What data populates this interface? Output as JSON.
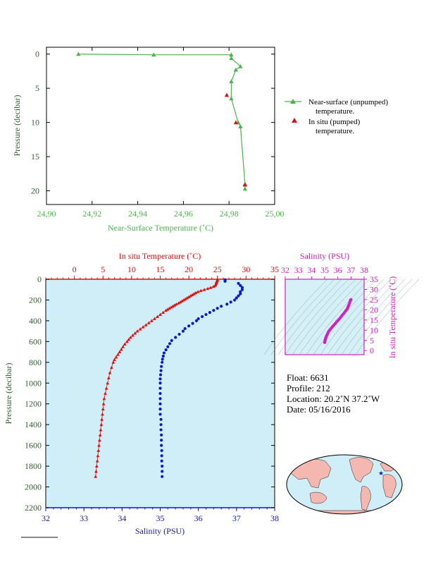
{
  "colors": {
    "green": "#4db34d",
    "red": "#e01010",
    "blue": "#0a1ad0",
    "magenta": "#d020c0",
    "panel_bg": "#cfeef8",
    "dark_axis": "#2f5f2f",
    "navy": "#1a1aa0"
  },
  "chart_data": [
    {
      "type": "line",
      "xlabel": "Near-Surface Temperature (˚C)",
      "ylabel": "Pressure (decibar)",
      "xlim": [
        24.9,
        25.0
      ],
      "ylim": [
        22,
        -1
      ],
      "x_ticks": [
        "24,90",
        "24,92",
        "24,94",
        "24,96",
        "24,98",
        "25,00"
      ],
      "y_ticks": [
        "0",
        "5",
        "10",
        "15",
        "20"
      ],
      "series": [
        {
          "name": "Near-surface (unpumped) temperature.",
          "x": [
            24.914,
            24.947,
            24.981,
            24.981,
            24.985,
            24.983,
            24.981,
            24.981,
            24.984,
            24.985,
            24.987,
            24.987
          ],
          "y": [
            0.0,
            0.1,
            0.1,
            0.6,
            1.8,
            2.3,
            4.0,
            6.5,
            10.0,
            10.6,
            19.0,
            19.7
          ]
        },
        {
          "name": "In situ (pumped) temperature.",
          "x": [
            24.979,
            24.983,
            24.987
          ],
          "y": [
            6.0,
            10.0,
            19.1
          ]
        }
      ],
      "legend": [
        {
          "line1": "Near-surface (unpumped)",
          "line2": "temperature."
        },
        {
          "line1": "In situ (pumped)",
          "line2": "temperature."
        }
      ]
    },
    {
      "type": "scatter",
      "top_xlabel": "In situ Temperature (˚C)",
      "bottom_xlabel": "Salinity (PSU)",
      "ylabel": "Pressure (decibar)",
      "temp_lim": [
        -5,
        35
      ],
      "sal_lim": [
        32,
        38
      ],
      "ylim": [
        2200,
        0
      ],
      "temp_ticks": [
        "0",
        "5",
        "10",
        "15",
        "20",
        "25",
        "30",
        "35"
      ],
      "sal_ticks": [
        "32",
        "33",
        "34",
        "35",
        "36",
        "37",
        "38"
      ],
      "y_ticks": [
        "0",
        "200",
        "400",
        "600",
        "800",
        "1000",
        "1200",
        "1400",
        "1600",
        "1800",
        "2000",
        "2200"
      ],
      "temperature": {
        "p": [
          5,
          10,
          20,
          30,
          40,
          50,
          60,
          70,
          80,
          90,
          100,
          110,
          120,
          130,
          140,
          150,
          160,
          170,
          180,
          190,
          200,
          210,
          220,
          230,
          240,
          250,
          260,
          270,
          280,
          290,
          300,
          320,
          340,
          360,
          380,
          400,
          420,
          440,
          460,
          480,
          500,
          520,
          540,
          560,
          580,
          600,
          625,
          650,
          675,
          700,
          725,
          750,
          775,
          800,
          850,
          900,
          950,
          1000,
          1050,
          1100,
          1150,
          1200,
          1250,
          1300,
          1350,
          1400,
          1450,
          1500,
          1550,
          1600,
          1650,
          1700,
          1750,
          1800,
          1850,
          1900
        ],
        "t": [
          25.0,
          25.0,
          24.9,
          24.8,
          24.8,
          24.7,
          24.6,
          24.3,
          23.8,
          23.3,
          22.7,
          22.1,
          21.6,
          21.2,
          20.9,
          20.6,
          20.3,
          20.0,
          19.7,
          19.4,
          19.1,
          18.8,
          18.5,
          18.2,
          17.8,
          17.5,
          17.2,
          16.9,
          16.6,
          16.3,
          16.0,
          15.5,
          15.0,
          14.5,
          14.0,
          13.5,
          13.0,
          12.5,
          12.0,
          11.5,
          11.0,
          10.6,
          10.2,
          9.8,
          9.5,
          9.2,
          8.8,
          8.5,
          8.2,
          7.9,
          7.6,
          7.3,
          7.0,
          6.8,
          6.5,
          6.2,
          6.0,
          5.8,
          5.6,
          5.4,
          5.2,
          5.1,
          5.0,
          4.9,
          4.8,
          4.7,
          4.6,
          4.5,
          4.4,
          4.3,
          4.2,
          4.1,
          4.0,
          3.9,
          3.8,
          3.7
        ]
      },
      "salinity": {
        "p": [
          5,
          10,
          20,
          40,
          60,
          80,
          100,
          120,
          140,
          160,
          180,
          200,
          220,
          240,
          260,
          280,
          300,
          320,
          340,
          360,
          380,
          400,
          425,
          450,
          475,
          500,
          530,
          560,
          590,
          620,
          650,
          680,
          710,
          740,
          770,
          800,
          840,
          880,
          920,
          960,
          1000,
          1050,
          1100,
          1150,
          1200,
          1250,
          1300,
          1350,
          1400,
          1450,
          1500,
          1550,
          1600,
          1650,
          1700,
          1750,
          1800,
          1850,
          1900
        ],
        "s": [
          36.7,
          36.7,
          36.7,
          37.05,
          37.1,
          37.15,
          37.15,
          37.1,
          37.1,
          37.05,
          37.0,
          36.95,
          36.85,
          36.75,
          36.6,
          36.5,
          36.4,
          36.3,
          36.2,
          36.1,
          36.0,
          35.95,
          35.85,
          35.75,
          35.65,
          35.6,
          35.5,
          35.4,
          35.3,
          35.25,
          35.2,
          35.15,
          35.1,
          35.08,
          35.06,
          35.05,
          35.03,
          35.02,
          35.01,
          35.0,
          35.0,
          35.0,
          35.0,
          35.0,
          35.0,
          35.0,
          35.0,
          35.02,
          35.02,
          35.02,
          35.03,
          35.03,
          35.03,
          35.04,
          35.04,
          35.04,
          35.05,
          35.05,
          35.05
        ]
      }
    },
    {
      "type": "scatter",
      "top_xlabel": "Salinity (PSU)",
      "ylabel": "In situ Temperature (˚C)",
      "sal_lim": [
        32,
        38
      ],
      "temp_lim": [
        -2,
        35
      ],
      "sal_ticks": [
        "32",
        "33",
        "34",
        "35",
        "36",
        "37",
        "38"
      ],
      "temp_ticks": [
        "0",
        "5",
        "10",
        "15",
        "20",
        "25",
        "30",
        "35"
      ],
      "points": {
        "s": [
          37.0,
          36.95,
          36.9,
          36.85,
          36.8,
          36.75,
          36.7,
          36.6,
          36.5,
          36.4,
          36.3,
          36.2,
          36.1,
          36.0,
          35.9,
          35.8,
          35.7,
          35.6,
          35.5,
          35.4,
          35.3,
          35.25,
          35.2,
          35.15,
          35.1,
          35.08,
          35.05,
          35.03,
          35.02,
          35.0
        ],
        "t": [
          25.0,
          24.5,
          23.5,
          22.5,
          21.8,
          21.0,
          20.3,
          19.5,
          18.6,
          17.8,
          17.0,
          16.2,
          15.4,
          14.7,
          14.0,
          13.2,
          12.5,
          11.8,
          11.0,
          10.2,
          9.4,
          8.7,
          8.0,
          7.3,
          6.6,
          6.0,
          5.5,
          5.0,
          4.5,
          4.0
        ]
      }
    }
  ],
  "info": {
    "float": "Float:  6631",
    "profile": "Profile:  212",
    "location": "Location:  20.2˚N  37.2˚W",
    "date": "Date:  05/16/2016"
  },
  "map": {
    "float_marker": "star-icon"
  }
}
